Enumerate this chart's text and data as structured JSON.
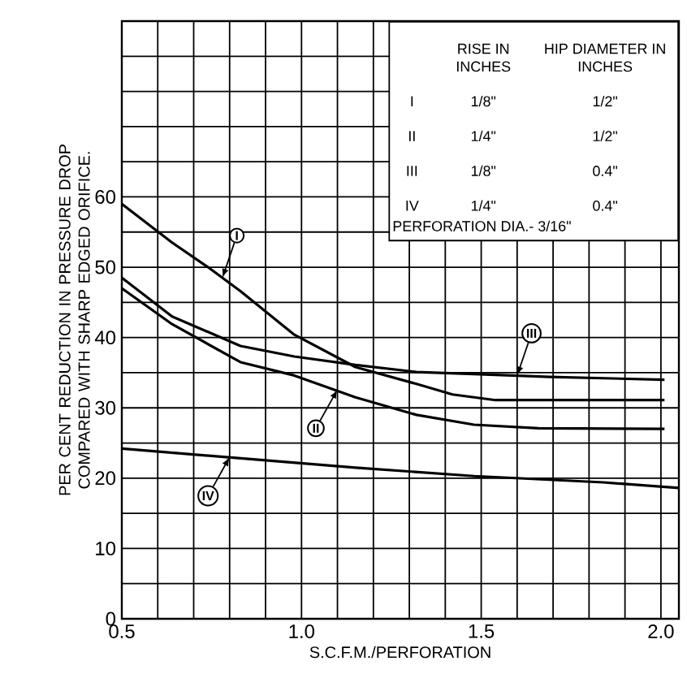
{
  "chart_data": {
    "type": "line",
    "xlabel": "S.C.F.M./PERFORATION",
    "ylabel": "PER CENT REDUCTION IN PRESSURE DROP COMPARED WITH SHARP EDGED ORIFICE.",
    "xlim": [
      0.5,
      2.05
    ],
    "ylim": [
      0,
      85
    ],
    "xticks": [
      {
        "value": 0.5,
        "label": "0.5"
      },
      {
        "value": 0.6,
        "label": null
      },
      {
        "value": 0.7,
        "label": null
      },
      {
        "value": 0.8,
        "label": null
      },
      {
        "value": 0.9,
        "label": null
      },
      {
        "value": 1.0,
        "label": "1.0"
      },
      {
        "value": 1.1,
        "label": null
      },
      {
        "value": 1.2,
        "label": null
      },
      {
        "value": 1.3,
        "label": null
      },
      {
        "value": 1.4,
        "label": null
      },
      {
        "value": 1.5,
        "label": "1.5"
      },
      {
        "value": 1.6,
        "label": null
      },
      {
        "value": 1.7,
        "label": null
      },
      {
        "value": 1.8,
        "label": null
      },
      {
        "value": 1.9,
        "label": null
      },
      {
        "value": 2.0,
        "label": "2.0"
      }
    ],
    "yticks": [
      0,
      {
        "value": 5,
        "label": null
      },
      10,
      {
        "value": 15,
        "label": null
      },
      20,
      {
        "value": 25,
        "label": null
      },
      30,
      {
        "value": 35,
        "label": null
      },
      40,
      {
        "value": 45,
        "label": null
      },
      50,
      {
        "value": 55,
        "label": null
      },
      60,
      {
        "value": 65,
        "label": null
      },
      {
        "value": 70,
        "label": null
      },
      {
        "value": 75,
        "label": null
      },
      {
        "value": 80,
        "label": null
      }
    ],
    "grid": true,
    "marker": "none",
    "line_style": "solid",
    "series": [
      {
        "color": "#000000",
        "x": [
          0.5,
          0.64,
          0.74,
          0.83,
          0.98,
          1.15,
          1.32,
          1.42,
          1.54,
          1.69,
          2.01
        ],
        "values": [
          59,
          53.5,
          50,
          46.6,
          40.4,
          35.8,
          33.4,
          31.9,
          31.1,
          31.1,
          31.1
        ]
      },
      {
        "color": "#000000",
        "x": [
          0.5,
          0.64,
          0.83,
          0.98,
          1.15,
          1.32,
          1.48,
          1.66,
          2.01
        ],
        "values": [
          47,
          41.9,
          36.5,
          34.6,
          31.5,
          29,
          27.6,
          27.1,
          27
        ]
      },
      {
        "color": "#000000",
        "x": [
          0.5,
          0.64,
          0.83,
          0.98,
          1.15,
          1.32,
          1.48,
          1.69,
          2.01
        ],
        "values": [
          48.5,
          43,
          38.8,
          37.3,
          36.1,
          35.1,
          34.8,
          34.4,
          34
        ]
      },
      {
        "color": "#000000",
        "x": [
          0.5,
          0.79,
          1.15,
          1.48,
          1.84,
          2.05
        ],
        "values": [
          24.2,
          23,
          21.5,
          20.3,
          19.4,
          18.6
        ]
      }
    ],
    "annotations": [
      "RISE IN INCHES",
      "HIP DIAMETER IN INCHES",
      "I",
      "1/8\"",
      "1/2\"",
      "II",
      "1/4\"",
      "1/2\"",
      "III",
      "1/8\"",
      "0.4\"",
      "IV",
      "1/4\"",
      "0.4\"",
      "PERFORATION DIA.- 3/16\"",
      {
        "text": "I",
        "x": 0.78,
        "y": 48.5
      },
      {
        "text": "II",
        "x": 1.1,
        "y": 32.6
      },
      {
        "text": "III",
        "x": 1.6,
        "y": 34.6
      },
      {
        "text": "IV",
        "x": 0.8,
        "y": 23
      }
    ]
  }
}
